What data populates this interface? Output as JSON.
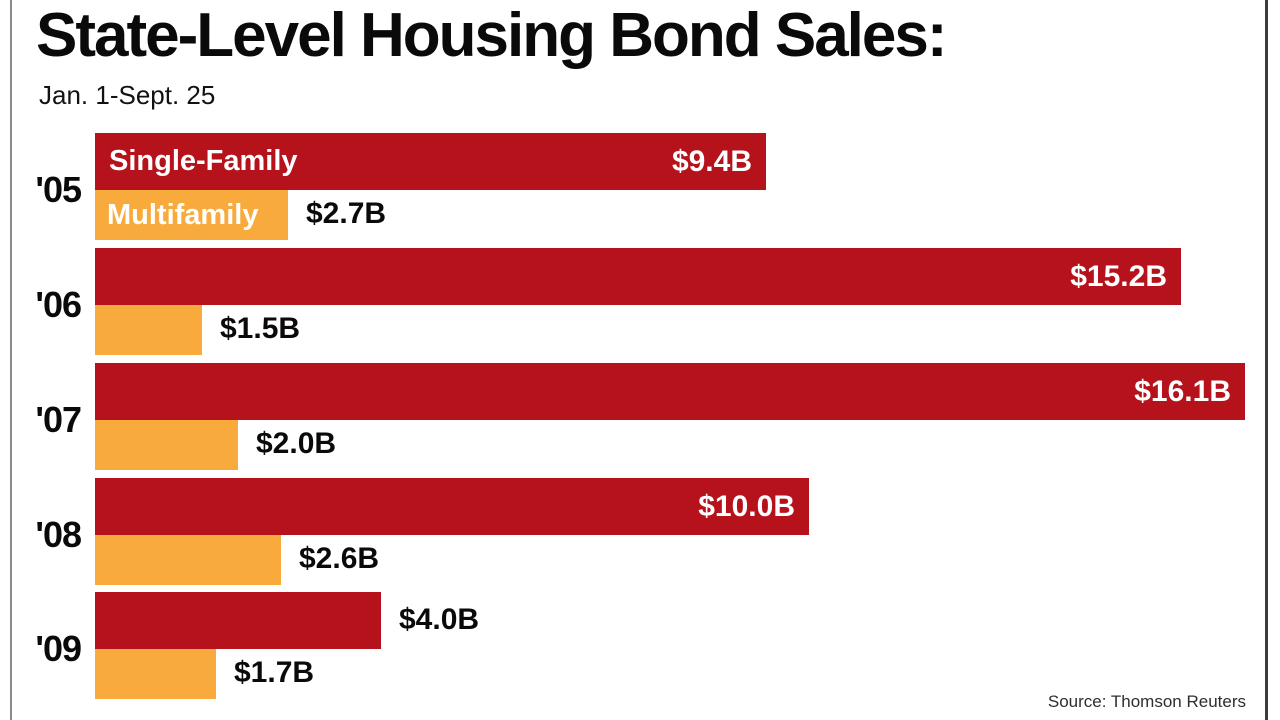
{
  "header": {
    "title": "State-Level Housing Bond Sales:",
    "subtitle": "Jan. 1-Sept. 25"
  },
  "footer": {
    "source": "Source: Thomson Reuters"
  },
  "colors": {
    "single_family_bar": "#b5121b",
    "multifamily_bar": "#f9aa3c",
    "inside_label_text": "#ffffff",
    "outside_label_text": "#0a0a0a"
  },
  "chart_data": {
    "type": "bar",
    "orientation": "horizontal",
    "title": "State-Level Housing Bond Sales:",
    "subtitle": "Jan. 1-Sept. 25",
    "unit": "billions of USD",
    "categories": [
      "'05",
      "'06",
      "'07",
      "'08",
      "'09"
    ],
    "series": [
      {
        "name": "Single-Family",
        "color": "#b5121b",
        "values": [
          9.4,
          15.2,
          16.1,
          10.0,
          4.0
        ],
        "value_labels": [
          "$9.4B",
          "$15.2B",
          "$16.1B",
          "$10.0B",
          "$4.0B"
        ]
      },
      {
        "name": "Multifamily",
        "color": "#f9aa3c",
        "values": [
          2.7,
          1.5,
          2.0,
          2.6,
          1.7
        ],
        "value_labels": [
          "$2.7B",
          "$1.5B",
          "$2.0B",
          "$2.6B",
          "$1.7B"
        ]
      }
    ],
    "xlim": [
      0,
      16.1
    ],
    "grid": false,
    "legend": "series names shown inside first row bars",
    "source": "Source: Thomson Reuters"
  }
}
